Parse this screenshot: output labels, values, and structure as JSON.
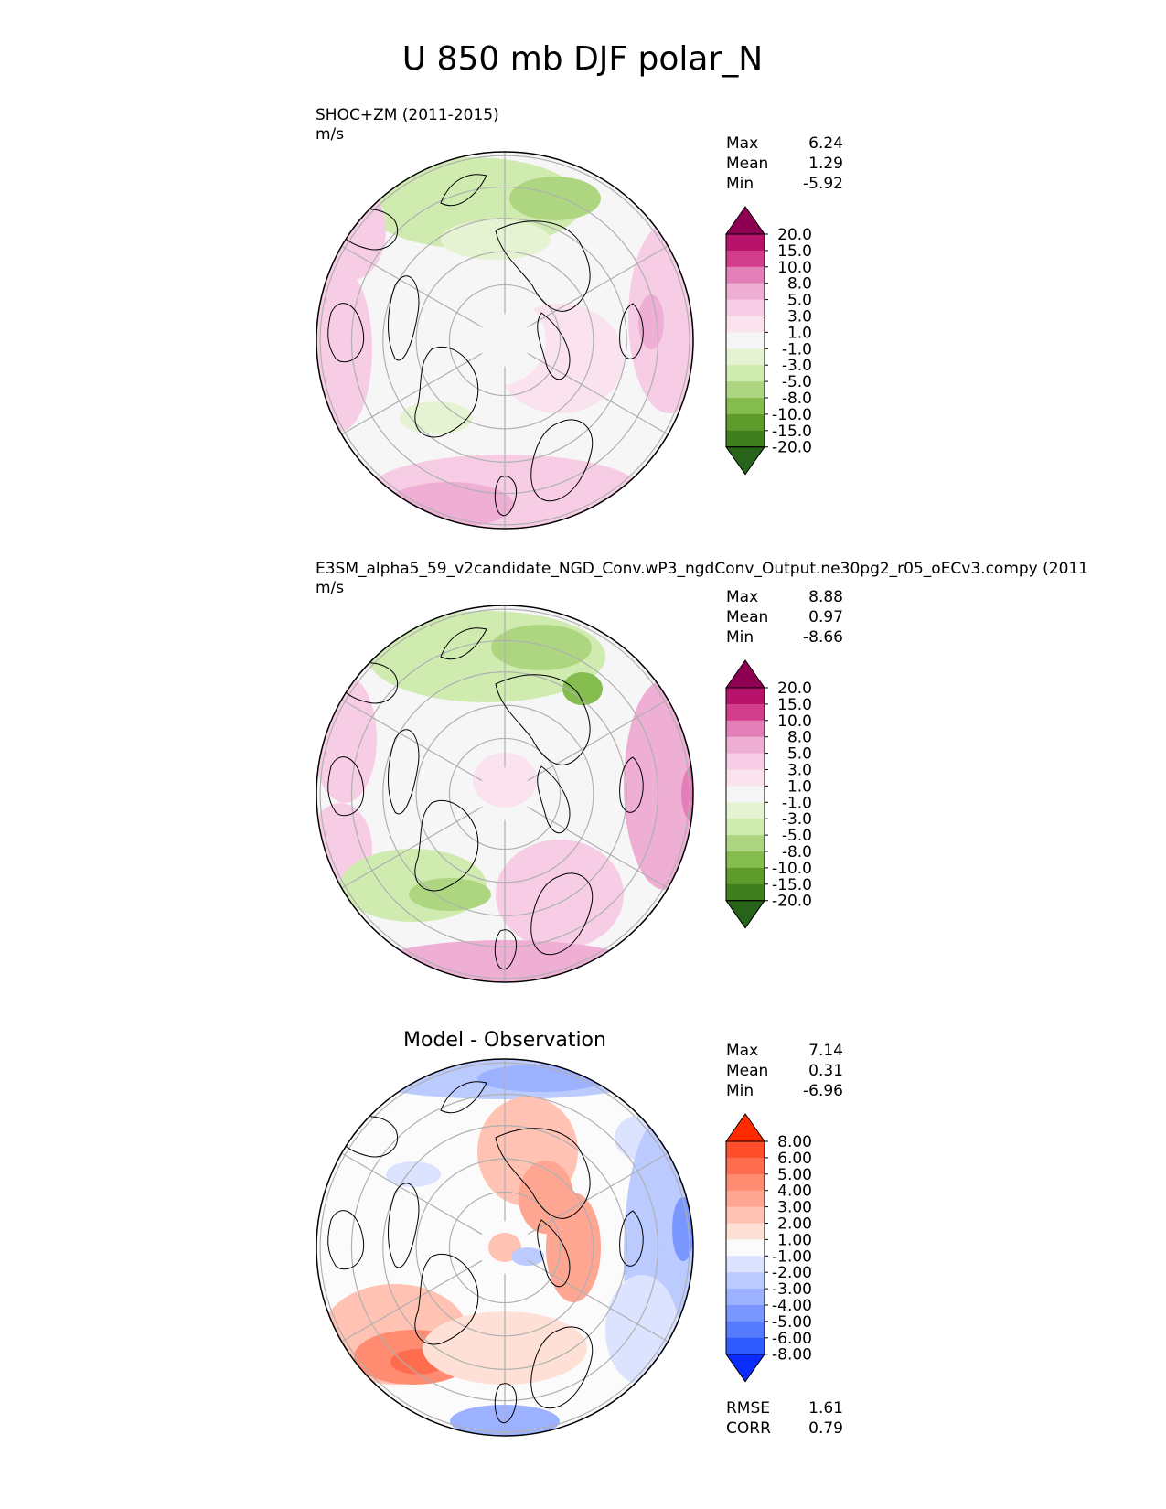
{
  "title": "U 850 mb DJF polar_N",
  "chart_data": [
    {
      "type": "heatmap",
      "projection": "polar-north",
      "name": "test",
      "title": "SHOC+ZM (2011-2015)",
      "units": "m/s",
      "stats": [
        {
          "label": "Max",
          "value": "6.24"
        },
        {
          "label": "Mean",
          "value": "1.29"
        },
        {
          "label": "Min",
          "value": "-5.92"
        }
      ],
      "colorbar_labels": [
        "20.0",
        "15.0",
        "10.0",
        "8.0",
        "5.0",
        "3.0",
        "1.0",
        "-1.0",
        "-3.0",
        "-5.0",
        "-8.0",
        "-10.0",
        "-15.0",
        "-20.0"
      ],
      "colorbar_levels": [
        20,
        15,
        10,
        8,
        5,
        3,
        1,
        -1,
        -3,
        -5,
        -8,
        -10,
        -15,
        -20
      ]
    },
    {
      "type": "heatmap",
      "projection": "polar-north",
      "name": "reference",
      "title": "E3SM_alpha5_59_v2candidate_NGD_Conv.wP3_ngdConv_Output.ne30pg2_r05_oECv3.compy (2011",
      "units": "m/s",
      "stats": [
        {
          "label": "Max",
          "value": "8.88"
        },
        {
          "label": "Mean",
          "value": "0.97"
        },
        {
          "label": "Min",
          "value": "-8.66"
        }
      ],
      "colorbar_labels": [
        "20.0",
        "15.0",
        "10.0",
        "8.0",
        "5.0",
        "3.0",
        "1.0",
        "-1.0",
        "-3.0",
        "-5.0",
        "-8.0",
        "-10.0",
        "-15.0",
        "-20.0"
      ],
      "colorbar_levels": [
        20,
        15,
        10,
        8,
        5,
        3,
        1,
        -1,
        -3,
        -5,
        -8,
        -10,
        -15,
        -20
      ]
    },
    {
      "type": "heatmap",
      "projection": "polar-north",
      "name": "difference",
      "title": "Model - Observation",
      "units": "",
      "stats": [
        {
          "label": "Max",
          "value": "7.14"
        },
        {
          "label": "Mean",
          "value": "0.31"
        },
        {
          "label": "Min",
          "value": "-6.96"
        }
      ],
      "colorbar_labels": [
        "8.00",
        "6.00",
        "5.00",
        "4.00",
        "3.00",
        "2.00",
        "1.00",
        "-1.00",
        "-2.00",
        "-3.00",
        "-4.00",
        "-5.00",
        "-6.00",
        "-8.00"
      ],
      "colorbar_levels": [
        8,
        6,
        5,
        4,
        3,
        2,
        1,
        -1,
        -2,
        -3,
        -4,
        -5,
        -6,
        -8
      ],
      "metrics": [
        {
          "label": "RMSE",
          "value": "1.61"
        },
        {
          "label": "CORR",
          "value": "0.79"
        }
      ]
    }
  ],
  "colors": {
    "diverging_pink_green": [
      "#8e0152",
      "#b7136a",
      "#d23e8c",
      "#e27fb7",
      "#efaed4",
      "#f7cde5",
      "#fae3ef",
      "#f6f6f6",
      "#e6f3d3",
      "#d0ebaf",
      "#aed680",
      "#84bc4e",
      "#5f9b2c",
      "#3f7f1d",
      "#276419"
    ],
    "diverging_red_blue": [
      "#ff2a00",
      "#ff4e2c",
      "#ff6d4f",
      "#ff8b70",
      "#ffa692",
      "#ffc2b3",
      "#ffe0d7",
      "#fbfbfb",
      "#dce3ff",
      "#bccbff",
      "#9cb1ff",
      "#7a96ff",
      "#567bff",
      "#2e5cff",
      "#0a2cff"
    ],
    "land_outline": "#000000",
    "grid": "#b0b0b0"
  }
}
